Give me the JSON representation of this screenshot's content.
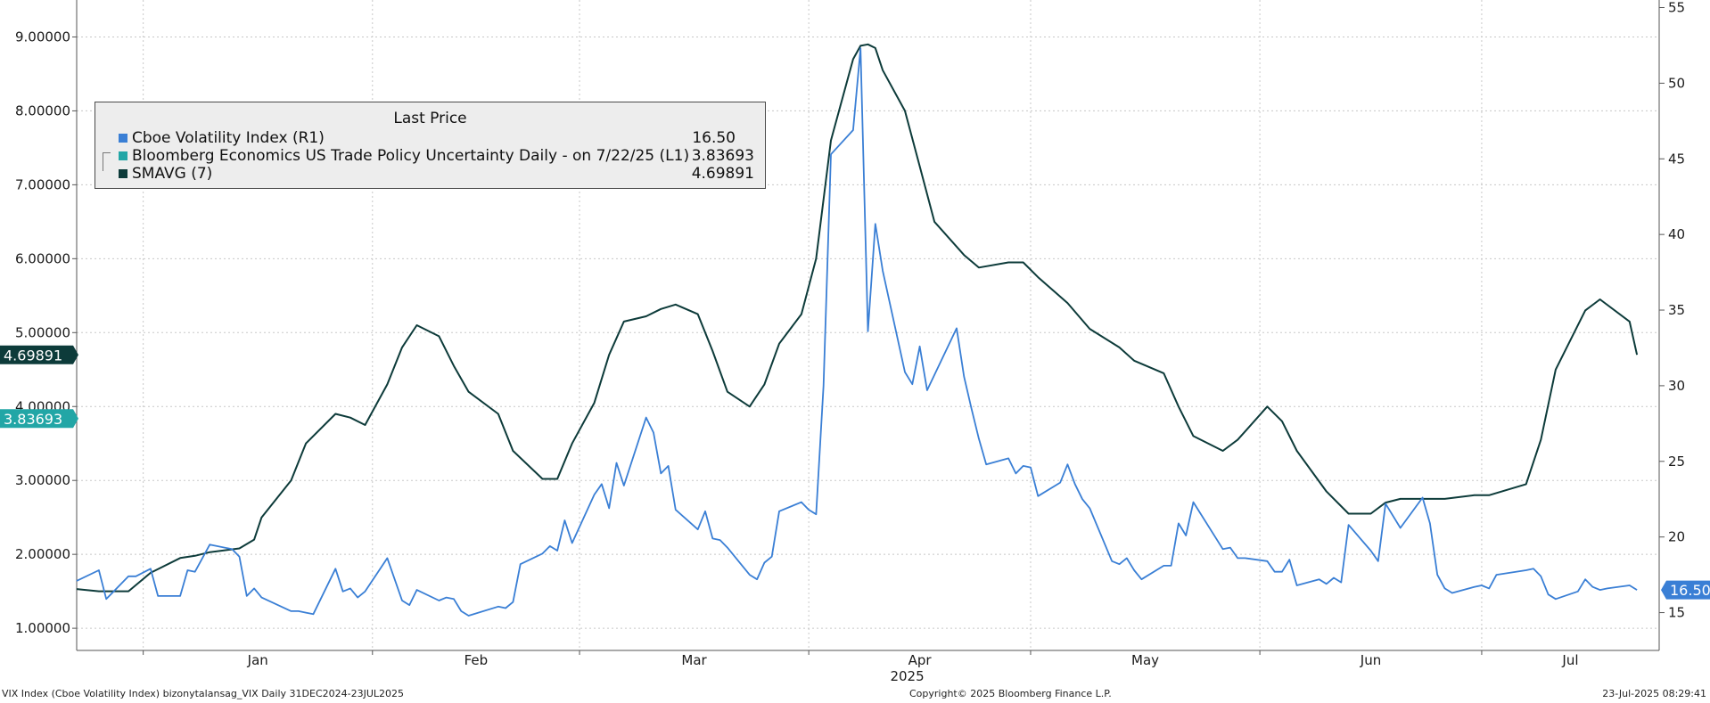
{
  "chart_data": {
    "type": "line",
    "legend": {
      "title": "Last Price",
      "placement": "top-left"
    },
    "left_axis": {
      "range": [
        0.7,
        9.5
      ],
      "ticks": [
        1.0,
        2.0,
        3.0,
        4.0,
        5.0,
        6.0,
        7.0,
        8.0,
        9.0
      ],
      "tick_labels": [
        "1.00000",
        "2.00000",
        "3.00000",
        "4.00000",
        "5.00000",
        "6.00000",
        "7.00000",
        "8.00000",
        "9.00000"
      ]
    },
    "right_axis": {
      "range": [
        12.5,
        55.5
      ],
      "ticks": [
        15,
        20,
        25,
        30,
        35,
        40,
        45,
        50,
        55
      ],
      "tick_labels": [
        "15",
        "20",
        "25",
        "30",
        "35",
        "40",
        "45",
        "50",
        "55"
      ]
    },
    "x_axis": {
      "range": [
        "2024-12-23",
        "2025-07-25"
      ],
      "months": [
        {
          "label": "Jan",
          "start": "2025-01-01",
          "end": "2025-02-01"
        },
        {
          "label": "Feb",
          "start": "2025-02-01",
          "end": "2025-03-01"
        },
        {
          "label": "Mar",
          "start": "2025-03-01",
          "end": "2025-04-01"
        },
        {
          "label": "Apr",
          "start": "2025-04-01",
          "end": "2025-05-01"
        },
        {
          "label": "May",
          "start": "2025-05-01",
          "end": "2025-06-01"
        },
        {
          "label": "Jun",
          "start": "2025-06-01",
          "end": "2025-07-01"
        },
        {
          "label": "Jul",
          "start": "2025-07-01",
          "end": "2025-07-25"
        }
      ],
      "year_label": "2025"
    },
    "grid": true,
    "series": [
      {
        "name": "Cboe Volatility Index  (R1)",
        "axis": "right",
        "color": "#3a7fd5",
        "last_value": "16.50",
        "x": [
          "2024-12-23",
          "2024-12-26",
          "2024-12-27",
          "2024-12-30",
          "2024-12-31",
          "2025-01-02",
          "2025-01-03",
          "2025-01-06",
          "2025-01-07",
          "2025-01-08",
          "2025-01-10",
          "2025-01-13",
          "2025-01-14",
          "2025-01-15",
          "2025-01-16",
          "2025-01-17",
          "2025-01-21",
          "2025-01-22",
          "2025-01-23",
          "2025-01-24",
          "2025-01-27",
          "2025-01-28",
          "2025-01-29",
          "2025-01-30",
          "2025-01-31",
          "2025-02-03",
          "2025-02-04",
          "2025-02-05",
          "2025-02-06",
          "2025-02-07",
          "2025-02-10",
          "2025-02-11",
          "2025-02-12",
          "2025-02-13",
          "2025-02-14",
          "2025-02-18",
          "2025-02-19",
          "2025-02-20",
          "2025-02-21",
          "2025-02-24",
          "2025-02-25",
          "2025-02-26",
          "2025-02-27",
          "2025-02-28",
          "2025-03-03",
          "2025-03-04",
          "2025-03-05",
          "2025-03-06",
          "2025-03-07",
          "2025-03-10",
          "2025-03-11",
          "2025-03-12",
          "2025-03-13",
          "2025-03-14",
          "2025-03-17",
          "2025-03-18",
          "2025-03-19",
          "2025-03-20",
          "2025-03-21",
          "2025-03-24",
          "2025-03-25",
          "2025-03-26",
          "2025-03-27",
          "2025-03-28",
          "2025-03-31",
          "2025-04-01",
          "2025-04-02",
          "2025-04-03",
          "2025-04-04",
          "2025-04-07",
          "2025-04-08",
          "2025-04-09",
          "2025-04-10",
          "2025-04-11",
          "2025-04-14",
          "2025-04-15",
          "2025-04-16",
          "2025-04-17",
          "2025-04-21",
          "2025-04-22",
          "2025-04-23",
          "2025-04-24",
          "2025-04-25",
          "2025-04-28",
          "2025-04-29",
          "2025-04-30",
          "2025-05-01",
          "2025-05-02",
          "2025-05-05",
          "2025-05-06",
          "2025-05-07",
          "2025-05-08",
          "2025-05-09",
          "2025-05-12",
          "2025-05-13",
          "2025-05-14",
          "2025-05-15",
          "2025-05-16",
          "2025-05-19",
          "2025-05-20",
          "2025-05-21",
          "2025-05-22",
          "2025-05-23",
          "2025-05-27",
          "2025-05-28",
          "2025-05-29",
          "2025-05-30",
          "2025-06-02",
          "2025-06-03",
          "2025-06-04",
          "2025-06-05",
          "2025-06-06",
          "2025-06-09",
          "2025-06-10",
          "2025-06-11",
          "2025-06-12",
          "2025-06-13",
          "2025-06-16",
          "2025-06-17",
          "2025-06-18",
          "2025-06-20",
          "2025-06-23",
          "2025-06-24",
          "2025-06-25",
          "2025-06-26",
          "2025-06-27",
          "2025-06-30",
          "2025-07-01",
          "2025-07-02",
          "2025-07-03",
          "2025-07-07",
          "2025-07-08",
          "2025-07-09",
          "2025-07-10",
          "2025-07-11",
          "2025-07-14",
          "2025-07-15",
          "2025-07-16",
          "2025-07-17",
          "2025-07-18",
          "2025-07-21",
          "2025-07-22"
        ],
        "y": [
          17.1,
          17.8,
          15.9,
          17.4,
          17.4,
          17.9,
          16.1,
          16.1,
          17.8,
          17.7,
          19.5,
          19.2,
          18.7,
          16.1,
          16.6,
          16.0,
          15.1,
          15.1,
          15.0,
          14.9,
          17.9,
          16.4,
          16.6,
          16.0,
          16.4,
          18.6,
          17.2,
          15.8,
          15.5,
          16.5,
          15.8,
          16.0,
          15.9,
          15.1,
          14.8,
          15.4,
          15.3,
          15.7,
          18.2,
          18.9,
          19.4,
          19.1,
          21.1,
          19.6,
          22.8,
          23.5,
          21.9,
          24.9,
          23.4,
          27.9,
          26.9,
          24.2,
          24.7,
          21.8,
          20.5,
          21.7,
          19.9,
          19.8,
          19.3,
          17.5,
          17.2,
          18.3,
          18.7,
          21.7,
          22.3,
          21.8,
          21.5,
          30.0,
          45.3,
          46.9,
          52.3,
          33.6,
          40.7,
          37.6,
          30.9,
          30.1,
          32.6,
          29.7,
          33.8,
          30.6,
          28.5,
          26.5,
          24.8,
          25.2,
          24.2,
          24.7,
          24.6,
          22.7,
          23.6,
          24.8,
          23.5,
          22.5,
          21.9,
          18.4,
          18.2,
          18.6,
          17.8,
          17.2,
          18.1,
          18.1,
          20.9,
          20.1,
          22.3,
          19.2,
          19.3,
          18.6,
          18.6,
          18.4,
          17.7,
          17.7,
          18.5,
          16.8,
          17.2,
          16.9,
          17.3,
          17.0,
          20.8,
          19.1,
          18.4,
          22.2,
          20.6,
          22.6,
          20.9,
          17.5,
          16.6,
          16.3,
          16.7,
          16.8,
          16.6,
          17.5,
          17.8,
          17.9,
          17.4,
          16.2,
          15.9,
          16.4,
          17.2,
          16.7,
          16.5,
          16.6,
          16.8,
          16.5
        ],
        "data_labels": []
      },
      {
        "name": "Bloomberg Economics US Trade Policy Uncertainty Daily -  on 7/22/25  (L1)",
        "axis": "left",
        "color": "#22a6a6",
        "last_value": "3.83693",
        "x": [],
        "y": []
      },
      {
        "name": "SMAVG (7)",
        "axis": "left",
        "color": "#0d3b3a",
        "last_value": "4.69891",
        "x": [
          "2024-12-23",
          "2024-12-26",
          "2024-12-30",
          "2025-01-02",
          "2025-01-06",
          "2025-01-08",
          "2025-01-10",
          "2025-01-14",
          "2025-01-16",
          "2025-01-17",
          "2025-01-21",
          "2025-01-23",
          "2025-01-27",
          "2025-01-29",
          "2025-01-31",
          "2025-02-03",
          "2025-02-05",
          "2025-02-07",
          "2025-02-10",
          "2025-02-12",
          "2025-02-14",
          "2025-02-18",
          "2025-02-20",
          "2025-02-24",
          "2025-02-26",
          "2025-02-28",
          "2025-03-03",
          "2025-03-05",
          "2025-03-07",
          "2025-03-10",
          "2025-03-12",
          "2025-03-14",
          "2025-03-17",
          "2025-03-19",
          "2025-03-21",
          "2025-03-24",
          "2025-03-26",
          "2025-03-28",
          "2025-03-31",
          "2025-04-02",
          "2025-04-04",
          "2025-04-07",
          "2025-04-08",
          "2025-04-09",
          "2025-04-10",
          "2025-04-11",
          "2025-04-14",
          "2025-04-16",
          "2025-04-18",
          "2025-04-22",
          "2025-04-24",
          "2025-04-28",
          "2025-04-30",
          "2025-05-02",
          "2025-05-06",
          "2025-05-09",
          "2025-05-13",
          "2025-05-15",
          "2025-05-19",
          "2025-05-21",
          "2025-05-23",
          "2025-05-27",
          "2025-05-29",
          "2025-06-02",
          "2025-06-04",
          "2025-06-06",
          "2025-06-10",
          "2025-06-13",
          "2025-06-16",
          "2025-06-18",
          "2025-06-20",
          "2025-06-24",
          "2025-06-26",
          "2025-06-30",
          "2025-07-02",
          "2025-07-07",
          "2025-07-09",
          "2025-07-11",
          "2025-07-15",
          "2025-07-17",
          "2025-07-21",
          "2025-07-22"
        ],
        "y": [
          1.53,
          1.5,
          1.5,
          1.75,
          1.95,
          1.98,
          2.03,
          2.08,
          2.2,
          2.5,
          3.0,
          3.5,
          3.9,
          3.85,
          3.75,
          4.3,
          4.8,
          5.1,
          4.95,
          4.55,
          4.2,
          3.9,
          3.4,
          3.02,
          3.02,
          3.5,
          4.05,
          4.7,
          5.15,
          5.22,
          5.32,
          5.38,
          5.25,
          4.75,
          4.2,
          4.0,
          4.3,
          4.85,
          5.25,
          6.0,
          7.6,
          8.7,
          8.88,
          8.9,
          8.85,
          8.55,
          8.0,
          7.25,
          6.5,
          6.05,
          5.88,
          5.95,
          5.95,
          5.75,
          5.4,
          5.05,
          4.8,
          4.62,
          4.45,
          4.0,
          3.6,
          3.4,
          3.55,
          4.0,
          3.8,
          3.4,
          2.85,
          2.55,
          2.55,
          2.7,
          2.75,
          2.75,
          2.75,
          2.8,
          2.8,
          2.95,
          3.55,
          4.5,
          5.3,
          5.45,
          5.15,
          4.7
        ],
        "data_labels": []
      }
    ]
  },
  "badges": {
    "smavg": {
      "text": "4.69891",
      "color": "#0d3b3a"
    },
    "tpu": {
      "text": "3.83693",
      "color": "#22a6a6"
    },
    "vix": {
      "text": "16.50",
      "color": "#3a7fd5"
    }
  },
  "footer": {
    "left": "VIX Index (Cboe Volatility Index) bizonytalansag_VIX  Daily 31DEC2024-23JUL2025",
    "center": "Copyright© 2025 Bloomberg Finance L.P.",
    "right": "23-Jul-2025 08:29:41"
  },
  "colors": {
    "grid": "#c8c8c8",
    "axis": "#555555",
    "vix": "#3a7fd5",
    "smavg": "#0d3b3a",
    "tpu": "#22a6a6"
  }
}
